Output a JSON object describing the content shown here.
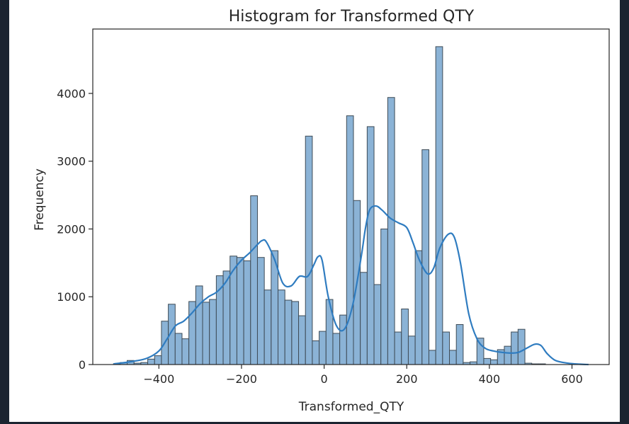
{
  "chart_data": {
    "type": "bar",
    "subtype": "histogram-with-kde",
    "title": "Histogram for Transformed QTY",
    "xlabel": "Transformed_QTY",
    "ylabel": "Frequency",
    "xlim": [
      -560,
      690
    ],
    "ylim": [
      0,
      4950
    ],
    "xticks": [
      -400,
      -200,
      0,
      200,
      400,
      600
    ],
    "yticks": [
      0,
      1000,
      2000,
      3000,
      4000
    ],
    "tick_labels_x": [
      "−400",
      "−200",
      "0",
      "200",
      "400",
      "600"
    ],
    "tick_labels_y": [
      "0",
      "1000",
      "2000",
      "3000",
      "4000"
    ],
    "grid": false,
    "colors": {
      "bar_fill": "#8bb3d6",
      "bar_edge": "#3e4b56",
      "kde": "#2f7cc0"
    },
    "bin_start": -510,
    "bin_width": 16.6,
    "bin_counts": [
      10,
      30,
      60,
      20,
      30,
      80,
      130,
      640,
      890,
      460,
      380,
      930,
      1160,
      920,
      960,
      1310,
      1380,
      1600,
      1580,
      1530,
      2490,
      1580,
      1100,
      1680,
      1100,
      950,
      930,
      720,
      3370,
      350,
      490,
      960,
      460,
      730,
      3670,
      2420,
      1360,
      3510,
      1180,
      2000,
      3940,
      480,
      820,
      420,
      1680,
      3170,
      210,
      4690,
      480,
      210,
      590,
      30,
      40,
      390,
      90,
      70,
      220,
      270,
      480,
      520,
      20,
      10,
      10
    ],
    "kde": {
      "x": [
        -510,
        -470,
        -430,
        -400,
        -380,
        -360,
        -340,
        -320,
        -300,
        -280,
        -260,
        -240,
        -220,
        -200,
        -180,
        -160,
        -150,
        -140,
        -120,
        -100,
        -80,
        -60,
        -40,
        -25,
        -15,
        -5,
        10,
        30,
        50,
        70,
        90,
        100,
        110,
        125,
        140,
        160,
        180,
        200,
        215,
        230,
        250,
        265,
        280,
        300,
        315,
        330,
        350,
        370,
        390,
        410,
        430,
        450,
        470,
        490,
        510,
        525,
        540,
        560,
        590,
        620,
        640
      ],
      "y": [
        10,
        40,
        90,
        200,
        380,
        570,
        640,
        760,
        900,
        1000,
        1070,
        1200,
        1390,
        1540,
        1650,
        1780,
        1830,
        1810,
        1550,
        1200,
        1160,
        1300,
        1300,
        1470,
        1590,
        1540,
        1000,
        570,
        530,
        900,
        1600,
        2010,
        2280,
        2340,
        2280,
        2160,
        2090,
        2020,
        1800,
        1550,
        1340,
        1420,
        1720,
        1920,
        1880,
        1500,
        750,
        380,
        240,
        200,
        180,
        170,
        180,
        240,
        300,
        280,
        160,
        60,
        20,
        5,
        0
      ]
    }
  }
}
